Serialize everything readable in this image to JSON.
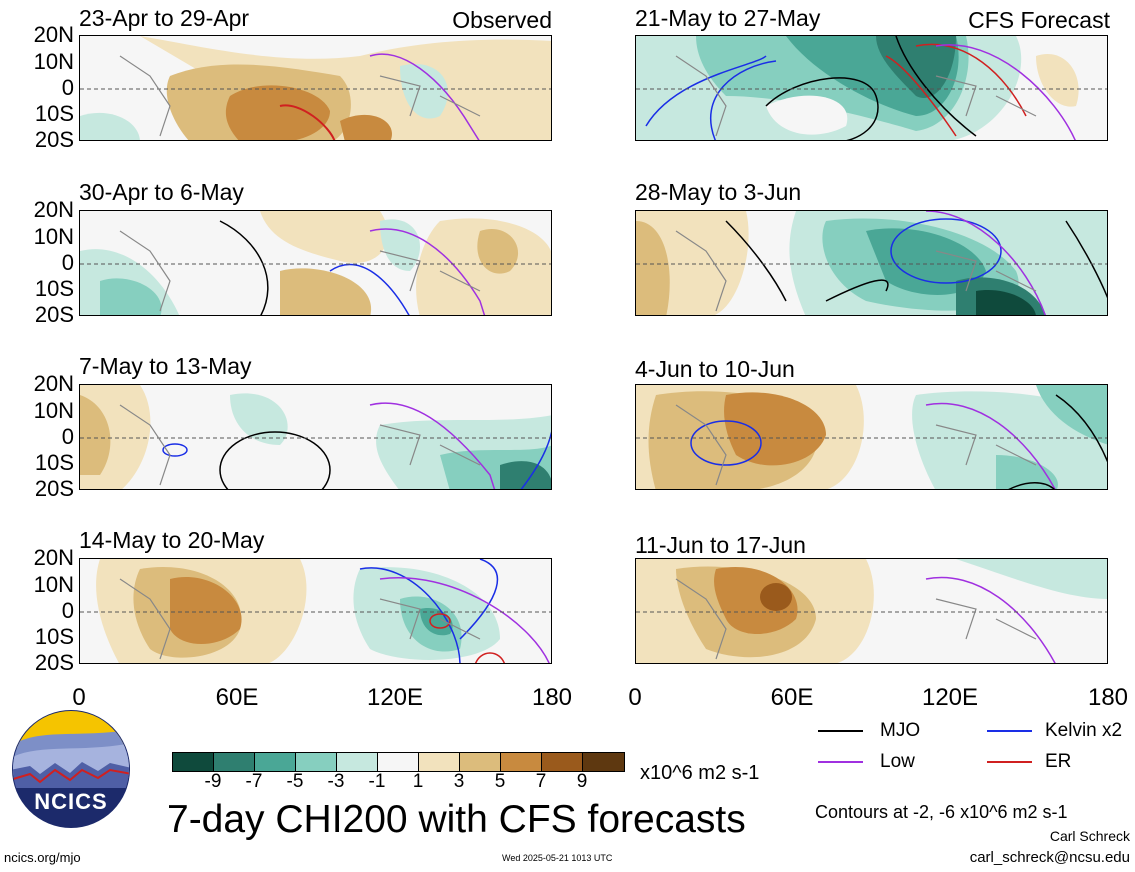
{
  "panels_left": [
    {
      "title": "23-Apr to 29-Apr",
      "label": "Observed"
    },
    {
      "title": "30-Apr to 6-May",
      "label": ""
    },
    {
      "title": "7-May to 13-May",
      "label": ""
    },
    {
      "title": "14-May to 20-May",
      "label": ""
    }
  ],
  "panels_right": [
    {
      "title": "21-May to 27-May",
      "label": "CFS Forecast"
    },
    {
      "title": "28-May to 3-Jun",
      "label": ""
    },
    {
      "title": "4-Jun to 10-Jun",
      "label": ""
    },
    {
      "title": "11-Jun to 17-Jun",
      "label": ""
    }
  ],
  "y_ticks": [
    "20N",
    "10N",
    "0",
    "10S",
    "20S"
  ],
  "x_ticks": [
    "0",
    "60E",
    "120E",
    "180"
  ],
  "colorbar": {
    "colors": [
      "#0f4a3c",
      "#2f7f70",
      "#4aa796",
      "#86cfbf",
      "#c6e8df",
      "#f6f6f6",
      "#f2e2bd",
      "#dcbc7c",
      "#c88a3f",
      "#9a5a1c",
      "#5e3810"
    ],
    "labels": [
      "-9",
      "-7",
      "-5",
      "-3",
      "-1",
      "1",
      "3",
      "5",
      "7",
      "9"
    ],
    "units": "x10^6 m2 s-1"
  },
  "title": "7-day CHI200 with CFS forecasts",
  "legend": [
    {
      "name": "MJO",
      "color": "#000000"
    },
    {
      "name": "Kelvin x2",
      "color": "#1a2ee6"
    },
    {
      "name": "Low",
      "color": "#a030e0"
    },
    {
      "name": "ER",
      "color": "#d02020"
    }
  ],
  "contour_note": "Contours at -2, -6 x10^6 m2 s-1",
  "author": "Carl Schreck",
  "email": "carl_schreck@ncsu.edu",
  "url": "ncics.org/mjo",
  "timestamp": "Wed 2025-05-21 1013 UTC",
  "logo_text": "NCICS"
}
